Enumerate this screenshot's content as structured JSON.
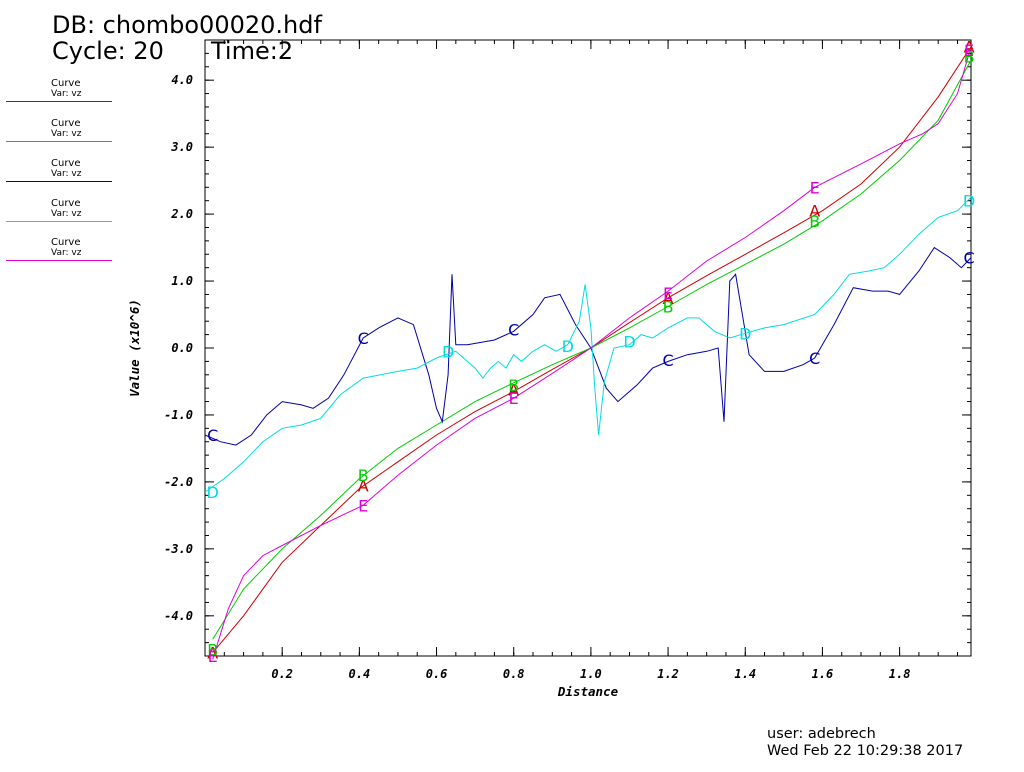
{
  "header": {
    "db": "DB: chombo00020.hdf",
    "cycle": "Cycle: 20",
    "time": "Time:2"
  },
  "legend": [
    {
      "label": "Curve",
      "var": "Var: vz",
      "color": "#cc0000"
    },
    {
      "label": "Curve",
      "var": "Var: vz",
      "color": "#00cc00"
    },
    {
      "label": "Curve",
      "var": "Var: vz",
      "color": "#0000aa"
    },
    {
      "label": "Curve",
      "var": "Var: vz",
      "color": "#00dddd"
    },
    {
      "label": "Curve",
      "var": "Var: vz",
      "color": "#dd00dd"
    }
  ],
  "footer": {
    "user": "user: adebrech",
    "date": "Wed Feb 22 10:29:38 2017"
  },
  "chart_data": {
    "type": "line",
    "xlabel": "Distance",
    "ylabel": "Value (x10^6)",
    "xlim": [
      0.0,
      1.985
    ],
    "ylim": [
      -4.6,
      4.6
    ],
    "xticks": [
      "0.2",
      "0.4",
      "0.6",
      "0.8",
      "1.0",
      "1.2",
      "1.4",
      "1.6",
      "1.8"
    ],
    "yticks": [
      "-4.0",
      "-3.0",
      "-2.0",
      "-1.0",
      "0.0",
      "1.0",
      "2.0",
      "3.0",
      "4.0"
    ],
    "grid": false,
    "series": [
      {
        "marker": "A",
        "color": "#cc0000",
        "points": [
          [
            0.02,
            -4.55
          ],
          [
            0.1,
            -4.0
          ],
          [
            0.2,
            -3.2
          ],
          [
            0.3,
            -2.65
          ],
          [
            0.4,
            -2.1
          ],
          [
            0.5,
            -1.7
          ],
          [
            0.6,
            -1.3
          ],
          [
            0.7,
            -0.95
          ],
          [
            0.8,
            -0.65
          ],
          [
            0.9,
            -0.32
          ],
          [
            1.0,
            0.0
          ],
          [
            1.1,
            0.38
          ],
          [
            1.2,
            0.75
          ],
          [
            1.3,
            1.08
          ],
          [
            1.4,
            1.4
          ],
          [
            1.5,
            1.72
          ],
          [
            1.6,
            2.05
          ],
          [
            1.7,
            2.45
          ],
          [
            1.8,
            3.0
          ],
          [
            1.9,
            3.75
          ],
          [
            1.985,
            4.5
          ]
        ],
        "marker_at": [
          [
            0.02,
            -4.55
          ],
          [
            0.41,
            -2.05
          ],
          [
            0.8,
            -0.62
          ],
          [
            1.2,
            0.75
          ],
          [
            1.58,
            2.05
          ],
          [
            1.98,
            4.5
          ]
        ]
      },
      {
        "marker": "B",
        "color": "#00cc00",
        "points": [
          [
            0.02,
            -4.35
          ],
          [
            0.1,
            -3.6
          ],
          [
            0.2,
            -3.0
          ],
          [
            0.3,
            -2.5
          ],
          [
            0.4,
            -1.95
          ],
          [
            0.5,
            -1.5
          ],
          [
            0.6,
            -1.15
          ],
          [
            0.7,
            -0.8
          ],
          [
            0.8,
            -0.52
          ],
          [
            0.9,
            -0.25
          ],
          [
            1.0,
            0.0
          ],
          [
            1.1,
            0.3
          ],
          [
            1.2,
            0.62
          ],
          [
            1.3,
            0.95
          ],
          [
            1.4,
            1.25
          ],
          [
            1.5,
            1.55
          ],
          [
            1.6,
            1.9
          ],
          [
            1.7,
            2.3
          ],
          [
            1.8,
            2.8
          ],
          [
            1.9,
            3.4
          ],
          [
            1.985,
            4.3
          ]
        ],
        "marker_at": [
          [
            0.02,
            -4.5
          ],
          [
            0.41,
            -1.9
          ],
          [
            0.8,
            -0.55
          ],
          [
            1.2,
            0.62
          ],
          [
            1.58,
            1.9
          ],
          [
            1.98,
            4.35
          ]
        ]
      },
      {
        "marker": "C",
        "color": "#0000aa",
        "points": [
          [
            0.0,
            -1.3
          ],
          [
            0.04,
            -1.4
          ],
          [
            0.08,
            -1.45
          ],
          [
            0.12,
            -1.3
          ],
          [
            0.16,
            -1.0
          ],
          [
            0.2,
            -0.8
          ],
          [
            0.25,
            -0.85
          ],
          [
            0.28,
            -0.9
          ],
          [
            0.32,
            -0.75
          ],
          [
            0.36,
            -0.4
          ],
          [
            0.41,
            0.15
          ],
          [
            0.45,
            0.3
          ],
          [
            0.5,
            0.45
          ],
          [
            0.54,
            0.35
          ],
          [
            0.58,
            -0.4
          ],
          [
            0.6,
            -0.9
          ],
          [
            0.615,
            -1.1
          ],
          [
            0.63,
            -0.4
          ],
          [
            0.64,
            1.1
          ],
          [
            0.65,
            0.05
          ],
          [
            0.68,
            0.05
          ],
          [
            0.75,
            0.12
          ],
          [
            0.8,
            0.25
          ],
          [
            0.85,
            0.5
          ],
          [
            0.88,
            0.75
          ],
          [
            0.92,
            0.8
          ],
          [
            0.96,
            0.35
          ],
          [
            1.0,
            0.0
          ],
          [
            1.04,
            -0.6
          ],
          [
            1.07,
            -0.8
          ],
          [
            1.12,
            -0.55
          ],
          [
            1.16,
            -0.3
          ],
          [
            1.2,
            -0.2
          ],
          [
            1.25,
            -0.1
          ],
          [
            1.3,
            -0.05
          ],
          [
            1.33,
            0.0
          ],
          [
            1.345,
            -1.1
          ],
          [
            1.36,
            1.0
          ],
          [
            1.375,
            1.1
          ],
          [
            1.41,
            -0.1
          ],
          [
            1.45,
            -0.35
          ],
          [
            1.5,
            -0.35
          ],
          [
            1.55,
            -0.25
          ],
          [
            1.58,
            -0.15
          ],
          [
            1.63,
            0.35
          ],
          [
            1.68,
            0.9
          ],
          [
            1.73,
            0.85
          ],
          [
            1.77,
            0.85
          ],
          [
            1.8,
            0.8
          ],
          [
            1.85,
            1.15
          ],
          [
            1.89,
            1.5
          ],
          [
            1.93,
            1.35
          ],
          [
            1.96,
            1.2
          ],
          [
            1.985,
            1.35
          ]
        ],
        "marker_at": [
          [
            0.02,
            -1.3
          ],
          [
            0.41,
            0.15
          ],
          [
            0.8,
            0.28
          ],
          [
            1.2,
            -0.18
          ],
          [
            1.58,
            -0.15
          ],
          [
            1.98,
            1.35
          ]
        ]
      },
      {
        "marker": "D",
        "color": "#00dddd",
        "points": [
          [
            0.0,
            -2.15
          ],
          [
            0.05,
            -1.95
          ],
          [
            0.1,
            -1.7
          ],
          [
            0.15,
            -1.4
          ],
          [
            0.2,
            -1.2
          ],
          [
            0.25,
            -1.15
          ],
          [
            0.3,
            -1.05
          ],
          [
            0.35,
            -0.7
          ],
          [
            0.41,
            -0.45
          ],
          [
            0.5,
            -0.35
          ],
          [
            0.55,
            -0.3
          ],
          [
            0.6,
            -0.15
          ],
          [
            0.65,
            -0.05
          ],
          [
            0.7,
            -0.3
          ],
          [
            0.72,
            -0.45
          ],
          [
            0.74,
            -0.3
          ],
          [
            0.76,
            -0.2
          ],
          [
            0.78,
            -0.3
          ],
          [
            0.8,
            -0.1
          ],
          [
            0.82,
            -0.2
          ],
          [
            0.85,
            -0.05
          ],
          [
            0.88,
            0.05
          ],
          [
            0.91,
            -0.05
          ],
          [
            0.94,
            0.05
          ],
          [
            0.97,
            0.4
          ],
          [
            0.985,
            0.95
          ],
          [
            1.0,
            0.3
          ],
          [
            1.01,
            -0.6
          ],
          [
            1.02,
            -1.3
          ],
          [
            1.035,
            -0.5
          ],
          [
            1.06,
            0.0
          ],
          [
            1.1,
            0.05
          ],
          [
            1.13,
            0.2
          ],
          [
            1.16,
            0.15
          ],
          [
            1.2,
            0.3
          ],
          [
            1.25,
            0.45
          ],
          [
            1.28,
            0.45
          ],
          [
            1.32,
            0.25
          ],
          [
            1.36,
            0.15
          ],
          [
            1.4,
            0.22
          ],
          [
            1.45,
            0.3
          ],
          [
            1.5,
            0.35
          ],
          [
            1.58,
            0.5
          ],
          [
            1.63,
            0.8
          ],
          [
            1.67,
            1.1
          ],
          [
            1.72,
            1.15
          ],
          [
            1.76,
            1.2
          ],
          [
            1.8,
            1.4
          ],
          [
            1.85,
            1.7
          ],
          [
            1.9,
            1.95
          ],
          [
            1.95,
            2.05
          ],
          [
            1.985,
            2.25
          ]
        ],
        "marker_at": [
          [
            0.02,
            -2.15
          ],
          [
            0.63,
            -0.05
          ],
          [
            0.94,
            0.03
          ],
          [
            1.1,
            0.1
          ],
          [
            1.4,
            0.22
          ],
          [
            1.98,
            2.2
          ]
        ]
      },
      {
        "marker": "E",
        "color": "#dd00dd",
        "points": [
          [
            0.02,
            -4.65
          ],
          [
            0.06,
            -3.9
          ],
          [
            0.1,
            -3.4
          ],
          [
            0.15,
            -3.1
          ],
          [
            0.2,
            -2.95
          ],
          [
            0.3,
            -2.65
          ],
          [
            0.41,
            -2.35
          ],
          [
            0.5,
            -1.9
          ],
          [
            0.6,
            -1.45
          ],
          [
            0.7,
            -1.05
          ],
          [
            0.8,
            -0.75
          ],
          [
            0.9,
            -0.38
          ],
          [
            1.0,
            0.0
          ],
          [
            1.1,
            0.45
          ],
          [
            1.2,
            0.85
          ],
          [
            1.3,
            1.3
          ],
          [
            1.4,
            1.65
          ],
          [
            1.5,
            2.05
          ],
          [
            1.58,
            2.4
          ],
          [
            1.7,
            2.75
          ],
          [
            1.8,
            3.05
          ],
          [
            1.86,
            3.2
          ],
          [
            1.9,
            3.35
          ],
          [
            1.95,
            3.8
          ],
          [
            1.985,
            4.5
          ]
        ],
        "marker_at": [
          [
            0.02,
            -4.6
          ],
          [
            0.41,
            -2.35
          ],
          [
            0.8,
            -0.75
          ],
          [
            1.2,
            0.82
          ],
          [
            1.58,
            2.4
          ],
          [
            1.98,
            4.45
          ]
        ]
      }
    ]
  }
}
